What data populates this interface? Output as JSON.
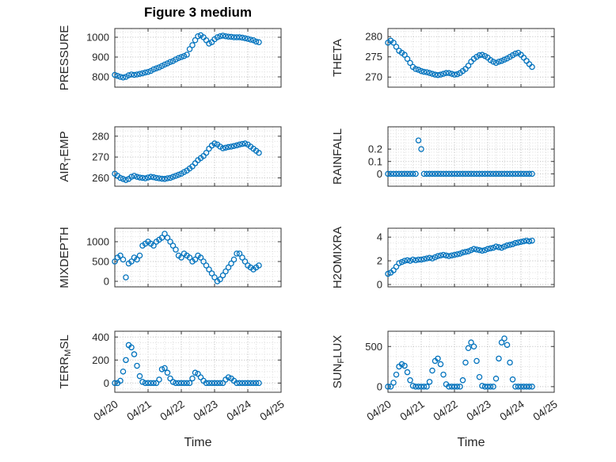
{
  "figure": {
    "title": "Figure 3 medium",
    "xlabel": "Time",
    "marker_color": "#0072BD",
    "text_color": "#262626",
    "background": "#ffffff"
  },
  "chart_data": {
    "type": "scatter",
    "title": "Figure 3 medium",
    "layout": "4 rows x 2 columns of boxed subplots, shared x-axis, dotted major+minor grid, open circle markers",
    "xlabel": "Time",
    "legend": "none",
    "marker": "open-circle",
    "marker_color": "#0072BD",
    "xlim_days": [
      0,
      5
    ],
    "x_tick_values_days": [
      0,
      1,
      2,
      3,
      4,
      5
    ],
    "x_tick_labels": [
      "04/20",
      "04/21",
      "04/22",
      "04/23",
      "04/24",
      "04/25"
    ],
    "x_days": [
      0,
      0.083,
      0.167,
      0.25,
      0.333,
      0.417,
      0.5,
      0.583,
      0.667,
      0.75,
      0.833,
      0.917,
      1,
      1.083,
      1.167,
      1.25,
      1.333,
      1.417,
      1.5,
      1.583,
      1.667,
      1.75,
      1.833,
      1.917,
      2,
      2.083,
      2.167,
      2.25,
      2.333,
      2.417,
      2.5,
      2.583,
      2.667,
      2.75,
      2.833,
      2.917,
      3,
      3.083,
      3.167,
      3.25,
      3.333,
      3.417,
      3.5,
      3.583,
      3.667,
      3.75,
      3.833,
      3.917,
      4,
      4.083,
      4.167,
      4.25,
      4.333
    ],
    "subplots": [
      {
        "name": "PRESSURE",
        "row": 0,
        "col": 0,
        "ylabel_pre": "PRESSURE",
        "ylabel_sub": "",
        "ylabel_post": "",
        "ylim": [
          748,
          1044
        ],
        "yticks": [
          800,
          900,
          1000
        ],
        "ytick_labels": [
          "800",
          "900",
          "1000"
        ],
        "values": [
          810,
          805,
          800,
          797,
          800,
          808,
          812,
          810,
          812,
          815,
          818,
          822,
          825,
          830,
          838,
          843,
          848,
          855,
          862,
          868,
          875,
          880,
          888,
          895,
          900,
          905,
          912,
          940,
          960,
          985,
          1005,
          1010,
          1000,
          985,
          968,
          975,
          990,
          1000,
          1005,
          1008,
          1005,
          1003,
          1002,
          1000,
          1000,
          1000,
          998,
          995,
          992,
          988,
          985,
          978,
          975
        ]
      },
      {
        "name": "THETA",
        "row": 0,
        "col": 1,
        "ylabel_pre": "THETA",
        "ylabel_sub": "",
        "ylabel_post": "",
        "ylim": [
          267.5,
          282
        ],
        "yticks": [
          270,
          275,
          280
        ],
        "ytick_labels": [
          "270",
          "275",
          "280"
        ],
        "values": [
          278.5,
          279,
          278.5,
          277.5,
          276.5,
          276,
          275.5,
          274.5,
          273.5,
          272.5,
          272,
          271.8,
          271.5,
          271.3,
          271.2,
          271,
          270.8,
          270.6,
          270.5,
          270.6,
          270.8,
          271,
          271,
          270.8,
          270.6,
          270.7,
          271,
          271.5,
          272,
          272.8,
          273.8,
          274.5,
          275,
          275.4,
          275.5,
          275.2,
          274.8,
          274.2,
          273.8,
          273.5,
          273.8,
          274,
          274.3,
          274.6,
          275,
          275.4,
          275.8,
          276,
          275.5,
          274.8,
          274,
          273.2,
          272.5
        ]
      },
      {
        "name": "AIR_TEMP",
        "row": 1,
        "col": 0,
        "ylabel_pre": "AIR",
        "ylabel_sub": "T",
        "ylabel_post": "EMP",
        "ylim": [
          256,
          284.5
        ],
        "yticks": [
          260,
          270,
          280
        ],
        "ytick_labels": [
          "260",
          "270",
          "280"
        ],
        "values": [
          262,
          261,
          260,
          259.5,
          259,
          259.5,
          260.5,
          261,
          260.5,
          260.2,
          260,
          259.8,
          260.2,
          260.5,
          260.3,
          260,
          259.8,
          259.6,
          259.5,
          259.8,
          260,
          260.5,
          261,
          261.5,
          262,
          262.8,
          263.5,
          264.5,
          265.5,
          267,
          268.5,
          269.5,
          270.5,
          272,
          274,
          275.5,
          276.5,
          276,
          275,
          274.2,
          274.5,
          274.8,
          275,
          275.3,
          275.6,
          276,
          276.3,
          276.5,
          276,
          275,
          274,
          273,
          272
        ]
      },
      {
        "name": "RAINFALL",
        "row": 1,
        "col": 1,
        "ylabel_pre": "RAINFALL",
        "ylabel_sub": "",
        "ylabel_post": "",
        "ylim": [
          -0.1,
          0.38
        ],
        "yticks": [
          0,
          0.1,
          0.2
        ],
        "ytick_labels": [
          "0",
          "0.1",
          "0.2"
        ],
        "values": [
          0,
          0,
          0,
          0,
          0,
          0,
          0,
          0,
          0,
          0,
          0,
          0.27,
          0.2,
          0,
          0,
          0,
          0,
          0,
          0,
          0,
          0,
          0,
          0,
          0,
          0,
          0,
          0,
          0,
          0,
          0,
          0,
          0,
          0,
          0,
          0,
          0,
          0,
          0,
          0,
          0,
          0,
          0,
          0,
          0,
          0,
          0,
          0,
          0,
          0,
          0,
          0,
          0,
          0
        ]
      },
      {
        "name": "MIXDEPTH",
        "row": 2,
        "col": 0,
        "ylabel_pre": "MIXDEPTH",
        "ylabel_sub": "",
        "ylabel_post": "",
        "ylim": [
          -140,
          1340
        ],
        "yticks": [
          0,
          500,
          1000
        ],
        "ytick_labels": [
          "0",
          "500",
          "1000"
        ],
        "values": [
          500,
          600,
          650,
          550,
          100,
          450,
          500,
          600,
          550,
          650,
          900,
          950,
          1000,
          950,
          900,
          1000,
          1050,
          1100,
          1200,
          1100,
          1000,
          900,
          800,
          650,
          600,
          700,
          650,
          600,
          500,
          550,
          650,
          600,
          500,
          400,
          300,
          200,
          100,
          0,
          50,
          150,
          250,
          350,
          450,
          550,
          700,
          700,
          600,
          500,
          400,
          350,
          300,
          350,
          400
        ]
      },
      {
        "name": "H2OMIXRA",
        "row": 2,
        "col": 1,
        "ylabel_pre": "H2OMIXRA",
        "ylabel_sub": "",
        "ylabel_post": "",
        "ylim": [
          -0.2,
          4.75
        ],
        "yticks": [
          0,
          2,
          4
        ],
        "ytick_labels": [
          "0",
          "2",
          "4"
        ],
        "values": [
          0.9,
          1.0,
          1.2,
          1.5,
          1.8,
          1.9,
          2.0,
          2.05,
          2.0,
          2.1,
          2.05,
          2.1,
          2.1,
          2.15,
          2.2,
          2.25,
          2.2,
          2.3,
          2.4,
          2.45,
          2.5,
          2.45,
          2.4,
          2.45,
          2.5,
          2.55,
          2.6,
          2.7,
          2.75,
          2.8,
          2.9,
          3.0,
          2.95,
          2.9,
          2.85,
          2.9,
          3.0,
          3.05,
          3.1,
          3.2,
          3.15,
          3.1,
          3.2,
          3.3,
          3.35,
          3.4,
          3.5,
          3.55,
          3.6,
          3.65,
          3.7,
          3.65,
          3.7
        ]
      },
      {
        "name": "TERR_MSL",
        "row": 3,
        "col": 0,
        "ylabel_pre": "TERR",
        "ylabel_sub": "M",
        "ylabel_post": "SL",
        "ylim": [
          -80,
          450
        ],
        "yticks": [
          0,
          200,
          400
        ],
        "ytick_labels": [
          "0",
          "200",
          "400"
        ],
        "values": [
          0,
          0,
          20,
          100,
          200,
          330,
          310,
          250,
          150,
          60,
          10,
          0,
          0,
          0,
          0,
          0,
          30,
          120,
          130,
          90,
          40,
          10,
          0,
          0,
          0,
          0,
          0,
          0,
          40,
          90,
          80,
          50,
          20,
          0,
          0,
          0,
          0,
          0,
          0,
          0,
          30,
          50,
          40,
          20,
          0,
          0,
          0,
          0,
          0,
          0,
          0,
          0,
          0
        ]
      },
      {
        "name": "SUN_FLUX",
        "row": 3,
        "col": 1,
        "ylabel_pre": "SUN",
        "ylabel_sub": "F",
        "ylabel_post": "LUX",
        "ylim": [
          -70,
          690
        ],
        "yticks": [
          0,
          500
        ],
        "ytick_labels": [
          "0",
          "500"
        ],
        "values": [
          0,
          0,
          50,
          150,
          250,
          280,
          260,
          180,
          80,
          10,
          0,
          0,
          0,
          0,
          0,
          60,
          200,
          320,
          350,
          280,
          150,
          30,
          0,
          0,
          0,
          0,
          0,
          80,
          300,
          480,
          550,
          500,
          320,
          120,
          10,
          0,
          0,
          0,
          0,
          100,
          350,
          550,
          600,
          520,
          300,
          90,
          0,
          0,
          0,
          0,
          0,
          0,
          0
        ]
      }
    ]
  }
}
